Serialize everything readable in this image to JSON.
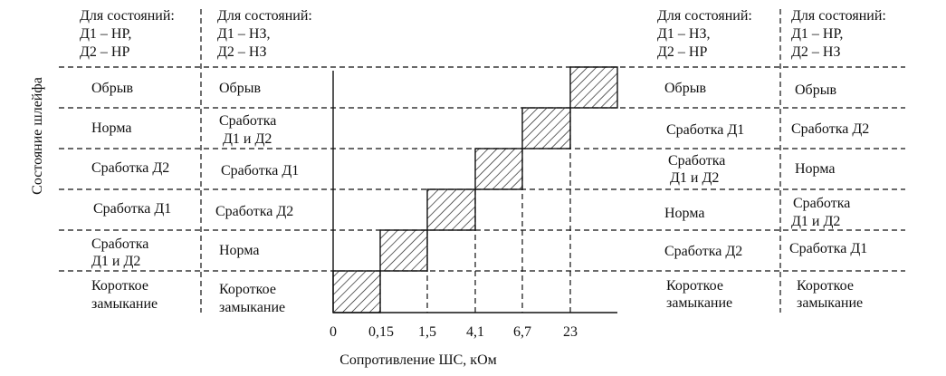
{
  "columns": [
    {
      "header": [
        "Для состояний:",
        "Д1 – НР,",
        "Д2 – НР"
      ],
      "rows": [
        [
          "Обрыв"
        ],
        [
          "Норма"
        ],
        [
          "Сработка Д2"
        ],
        [
          "Сработка Д1"
        ],
        [
          "Сработка",
          "Д1 и Д2"
        ],
        [
          "Короткое",
          "замыкание"
        ]
      ]
    },
    {
      "header": [
        "Для состояний:",
        "Д1 – НЗ,",
        "Д2 – НЗ"
      ],
      "rows": [
        [
          "Обрыв"
        ],
        [
          "Сработка",
          "Д1 и Д2"
        ],
        [
          "Сработка Д1"
        ],
        [
          "Сработка Д2"
        ],
        [
          "Норма"
        ],
        [
          "Короткое",
          "замыкание"
        ]
      ]
    },
    {
      "header": [
        "Для состояний:",
        "Д1 – НЗ,",
        "Д2 – НР"
      ],
      "rows": [
        [
          "Обрыв"
        ],
        [
          "Сработка Д1"
        ],
        [
          "Сработка",
          "Д1 и Д2"
        ],
        [
          "Норма"
        ],
        [
          "Сработка Д2"
        ],
        [
          "Короткое",
          "замыкание"
        ]
      ]
    },
    {
      "header": [
        "Для состояний:",
        "Д1 – НР,",
        "Д2 – НЗ"
      ],
      "rows": [
        [
          "Обрыв"
        ],
        [
          "Сработка Д2"
        ],
        [
          "Норма"
        ],
        [
          "Сработка",
          "Д1 и Д2"
        ],
        [
          "Сработка Д1"
        ],
        [
          "Короткое",
          "замыкание"
        ]
      ]
    }
  ],
  "axis": {
    "y_title": "Состояние шлейфа",
    "x_title": "Сопротивление ШС, кОм",
    "ticks": [
      "0",
      "0,15",
      "1,5",
      "4,1",
      "6,7",
      "23"
    ]
  }
}
